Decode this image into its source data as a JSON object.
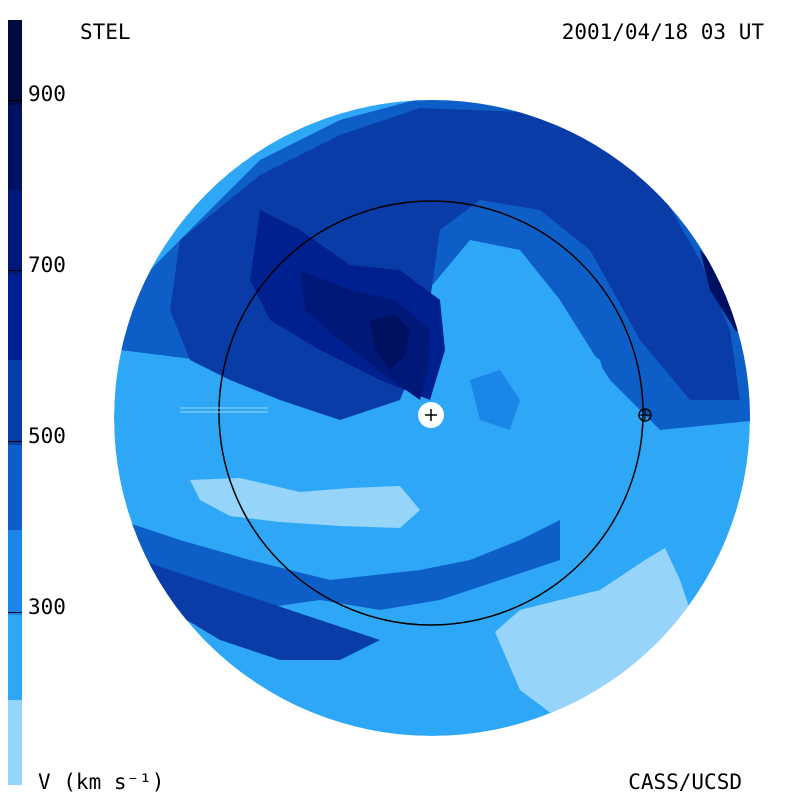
{
  "header": {
    "observatory": "STEL",
    "datetime": "2001/04/18 03 UT"
  },
  "footer": {
    "quantity_label": "V (km s⁻¹)",
    "institution": "CASS/UCSD"
  },
  "colorbar": {
    "tick_labels": [
      "900",
      "700",
      "500",
      "300"
    ],
    "levels": [
      {
        "from": 900,
        "to": 1000,
        "color": "#000a3c"
      },
      {
        "from": 800,
        "to": 900,
        "color": "#001060"
      },
      {
        "from": 700,
        "to": 800,
        "color": "#001878"
      },
      {
        "from": 600,
        "to": 700,
        "color": "#00208f"
      },
      {
        "from": 500,
        "to": 600,
        "color": "#0a3ca8"
      },
      {
        "from": 400,
        "to": 500,
        "color": "#0e5ec8"
      },
      {
        "from": 300,
        "to": 400,
        "color": "#1a86e8"
      },
      {
        "from": 200,
        "to": 300,
        "color": "#2ea8f6"
      },
      {
        "from": 100,
        "to": 200,
        "color": "#96d4fa"
      }
    ]
  },
  "map": {
    "earth_orbit_circle": true,
    "sun_marker": "sun-plus-icon",
    "earth_marker": "earth-circle-plus-icon"
  }
}
